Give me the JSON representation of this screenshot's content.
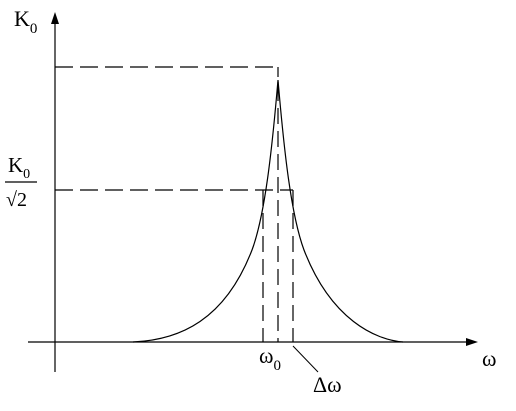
{
  "diagram": {
    "y_axis_label": {
      "main": "K",
      "sub": "0"
    },
    "x_axis_label": "ω",
    "half_level_label": {
      "numerator_main": "K",
      "numerator_sub": "0",
      "denominator": "√2"
    },
    "center_freq_label": {
      "main": "ω",
      "sub": "0"
    },
    "bandwidth_label": "Δω",
    "colors": {
      "background": "#ffffff",
      "ink": "#000000"
    }
  }
}
